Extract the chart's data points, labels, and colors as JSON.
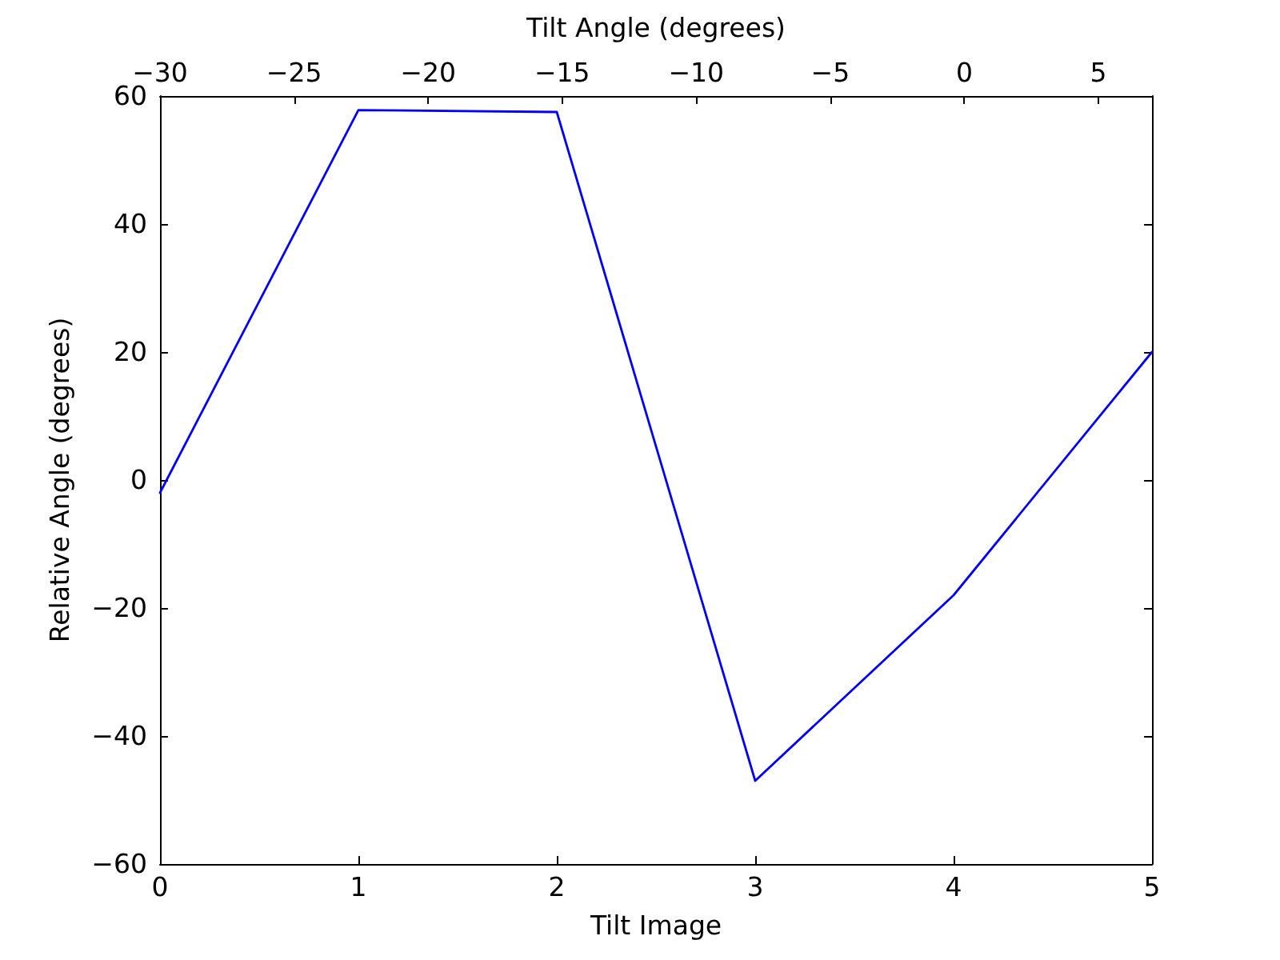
{
  "chart_data": {
    "type": "line",
    "xlabel": "Tilt Image",
    "ylabel": "Relative Angle (degrees)",
    "x2label": "Tilt Angle (degrees)",
    "x": [
      0,
      1,
      2,
      3,
      4,
      5
    ],
    "values": [
      -2,
      57.8,
      57.5,
      -47,
      -18,
      20
    ],
    "color": "#0000ff",
    "xlim": [
      0,
      5
    ],
    "xticks": [
      0,
      1,
      2,
      3,
      4,
      5
    ],
    "x2lim": [
      -30,
      7
    ],
    "x2ticks": [
      -30,
      -25,
      -20,
      -15,
      -10,
      -5,
      0,
      5
    ],
    "ylim": [
      -60,
      60
    ],
    "yticks": [
      -60,
      -40,
      -20,
      0,
      20,
      40,
      60
    ]
  }
}
